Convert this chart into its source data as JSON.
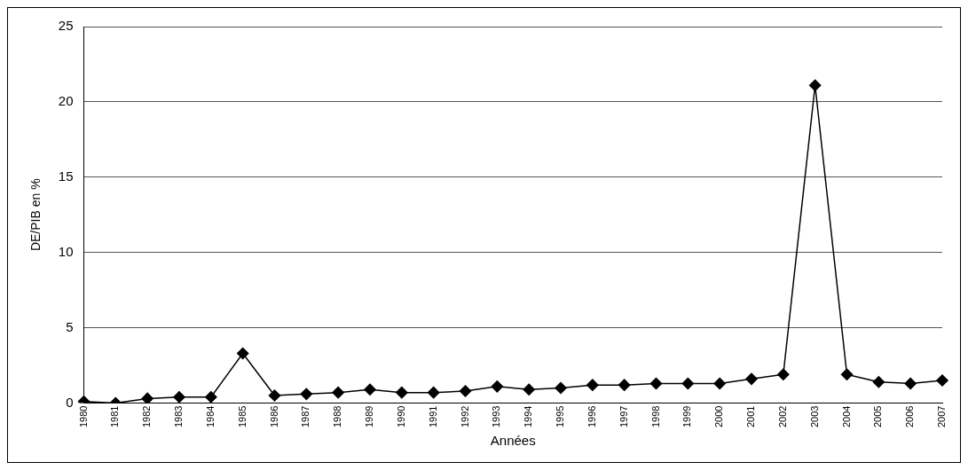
{
  "chart_data": {
    "type": "line",
    "xlabel": "Années",
    "ylabel": "DE/PIB en %",
    "categories": [
      "1980",
      "1981",
      "1982",
      "1983",
      "1984",
      "1985",
      "1986",
      "1987",
      "1988",
      "1989",
      "1990",
      "1991",
      "1992",
      "1993",
      "1994",
      "1995",
      "1996",
      "1997",
      "1998",
      "1999",
      "2000",
      "2001",
      "2002",
      "2003",
      "2004",
      "2005",
      "2006",
      "2007"
    ],
    "series": [
      {
        "color": "#000000",
        "values": [
          0.1,
          0,
          0.3,
          0.4,
          0.4,
          3.3,
          0.5,
          0.6,
          0.7,
          0.9,
          0.7,
          0.7,
          0.8,
          1.1,
          0.9,
          1.0,
          1.2,
          1.2,
          1.3,
          1.3,
          1.3,
          1.6,
          1.9,
          21.1,
          1.9,
          1.4,
          1.3,
          1.5
        ]
      }
    ],
    "ylim": [
      0,
      25
    ],
    "yticks": [
      0,
      5,
      10,
      15,
      20,
      25
    ],
    "grid": "y",
    "legend": false,
    "marker": "diamond",
    "line_style": "solid"
  }
}
